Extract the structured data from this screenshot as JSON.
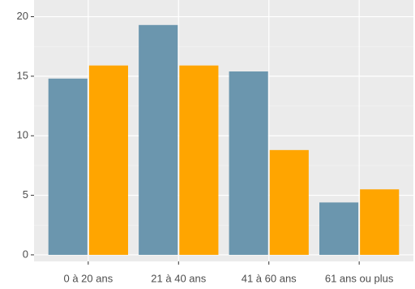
{
  "chart_data": {
    "type": "bar",
    "categories": [
      "0 à 20 ans",
      "21 à 40 ans",
      "41 à 60 ans",
      "61 ans ou plus"
    ],
    "series": [
      {
        "color": "#6b96ae",
        "values": [
          14.8,
          19.3,
          15.4,
          4.4
        ]
      },
      {
        "color": "#ffa500",
        "values": [
          15.9,
          15.9,
          8.8,
          5.5
        ]
      }
    ],
    "ylim": [
      -0.55,
      21.4
    ],
    "yticks": [
      0,
      5,
      10,
      15,
      20
    ],
    "grid": true
  }
}
